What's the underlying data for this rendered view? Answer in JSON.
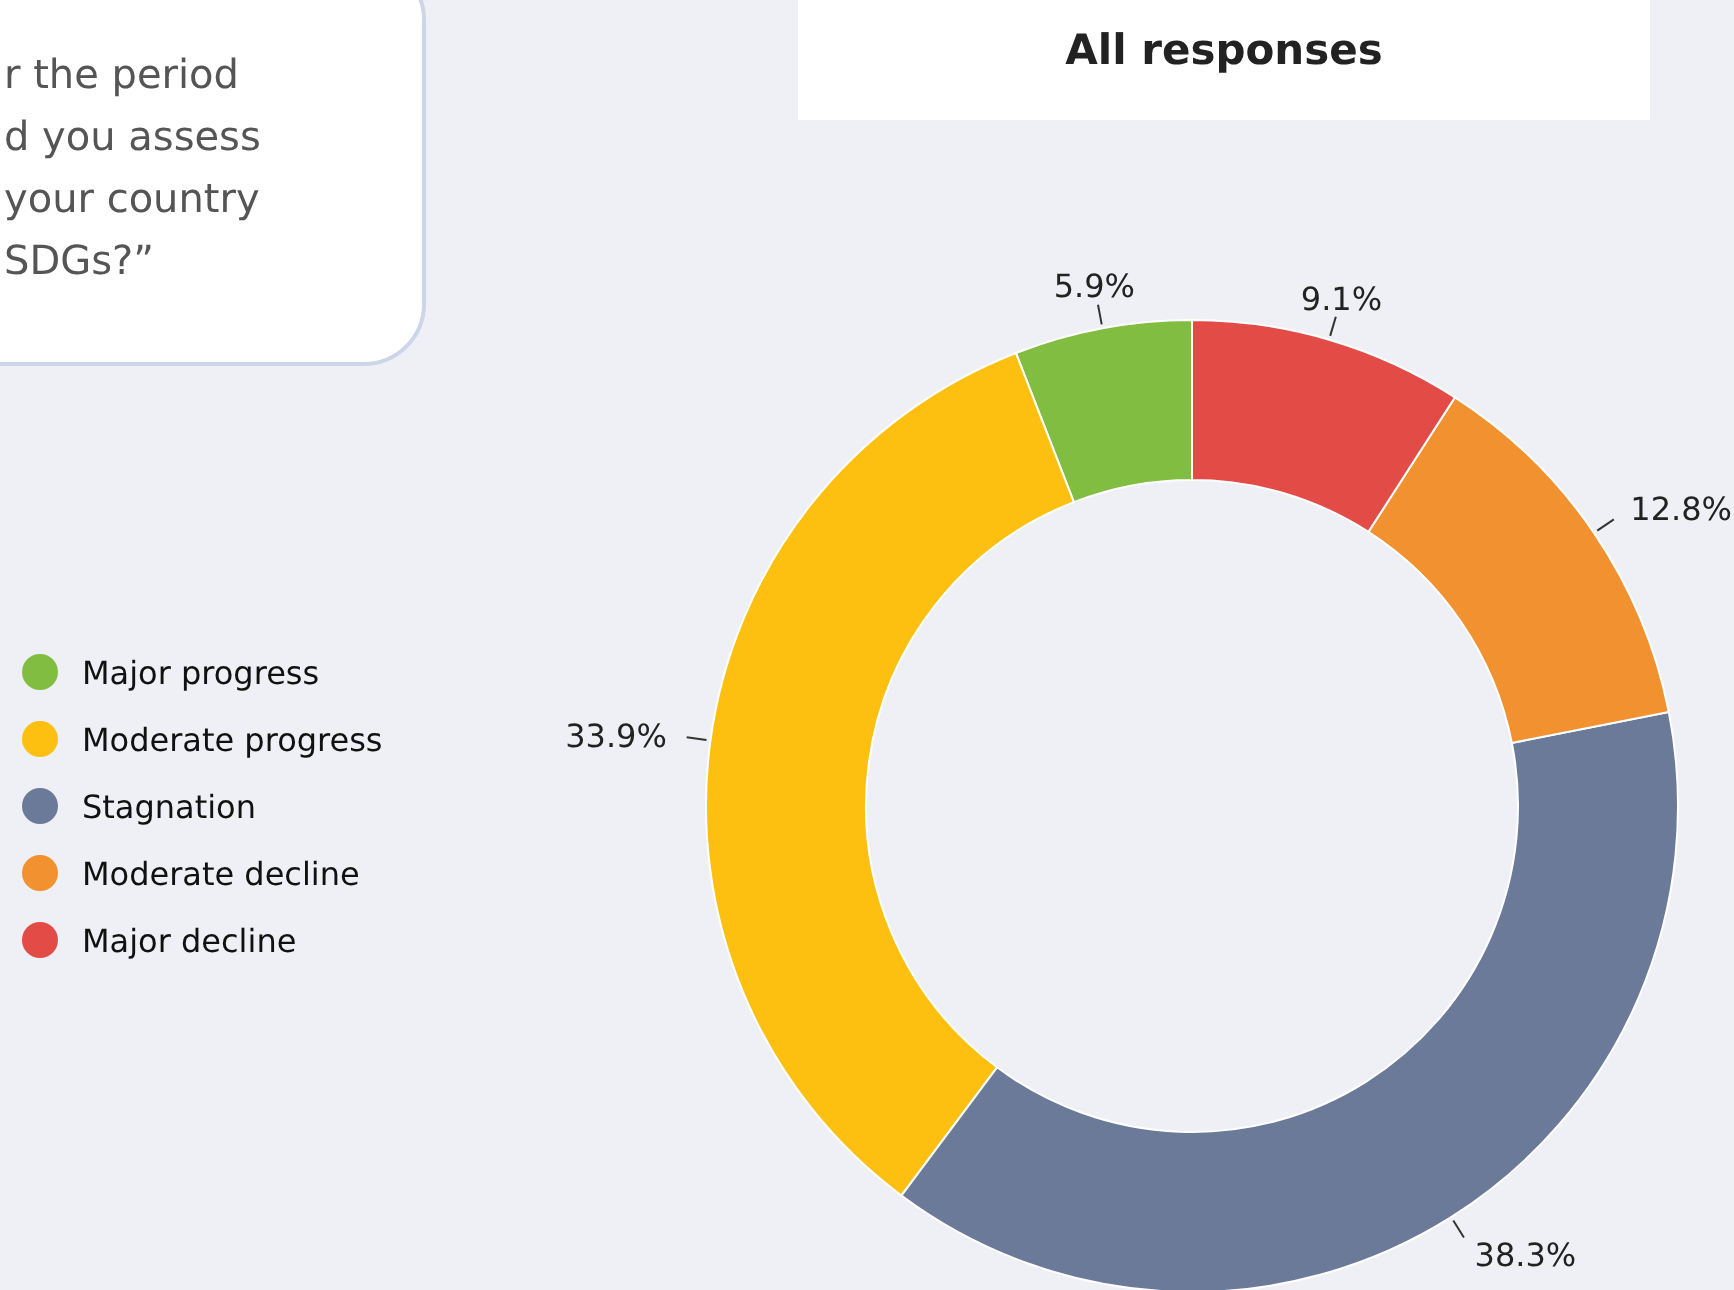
{
  "chart_data": {
    "type": "donut",
    "title": "All responses",
    "categories": [
      "Major progress",
      "Moderate progress",
      "Stagnation",
      "Moderate decline",
      "Major decline"
    ],
    "values": [
      5.9,
      33.9,
      38.3,
      12.8,
      9.1
    ],
    "colors": [
      "#80bd41",
      "#fdc010",
      "#6c7a9a",
      "#f29130",
      "#e34b47"
    ],
    "value_labels": [
      "5.9%",
      "33.9%",
      "38.3%",
      "12.8%",
      "9.1%"
    ],
    "legend": "left",
    "annotations": [
      "r the period\nd you assess\nyour country\nSDGs?”"
    ]
  }
}
